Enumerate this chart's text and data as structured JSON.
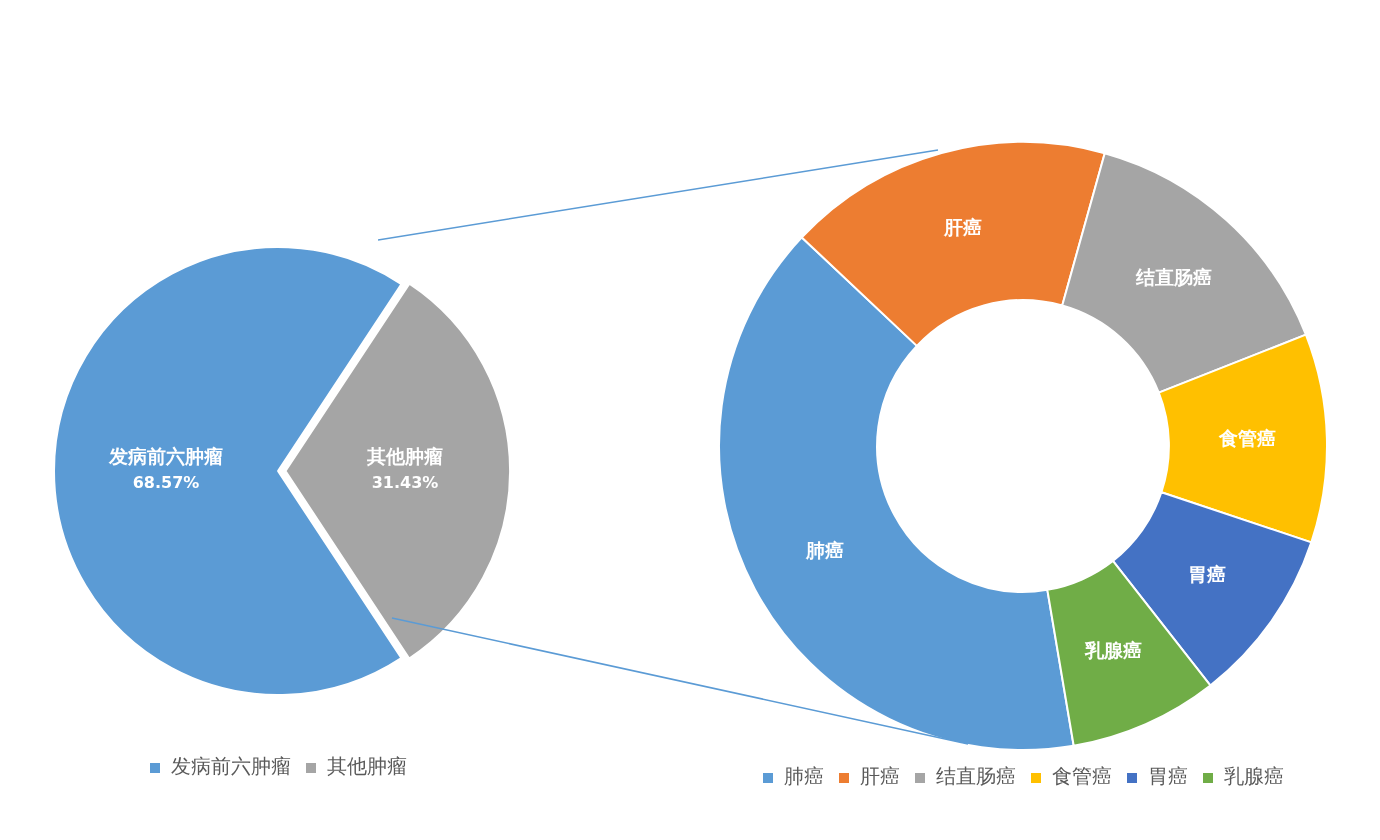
{
  "chart_data": [
    {
      "type": "pie",
      "categories": [
        "发病前六肿瘤",
        "其他肿瘤"
      ],
      "values": [
        68.57,
        31.43
      ],
      "colors": [
        "#5b9bd5",
        "#a5a5a5"
      ],
      "value_labels": [
        "68.57%",
        "31.43%"
      ],
      "legend": "bottom"
    },
    {
      "type": "donut",
      "categories": [
        "肺癌",
        "肝癌",
        "结直肠癌",
        "食管癌",
        "胃癌",
        "乳腺癌"
      ],
      "values": [
        39.7,
        17.3,
        14.7,
        11.1,
        9.3,
        7.9
      ],
      "colors": [
        "#5b9bd5",
        "#ed7d31",
        "#a5a5a5",
        "#ffc000",
        "#4472c4",
        "#70ad47"
      ],
      "legend": "bottom"
    }
  ]
}
